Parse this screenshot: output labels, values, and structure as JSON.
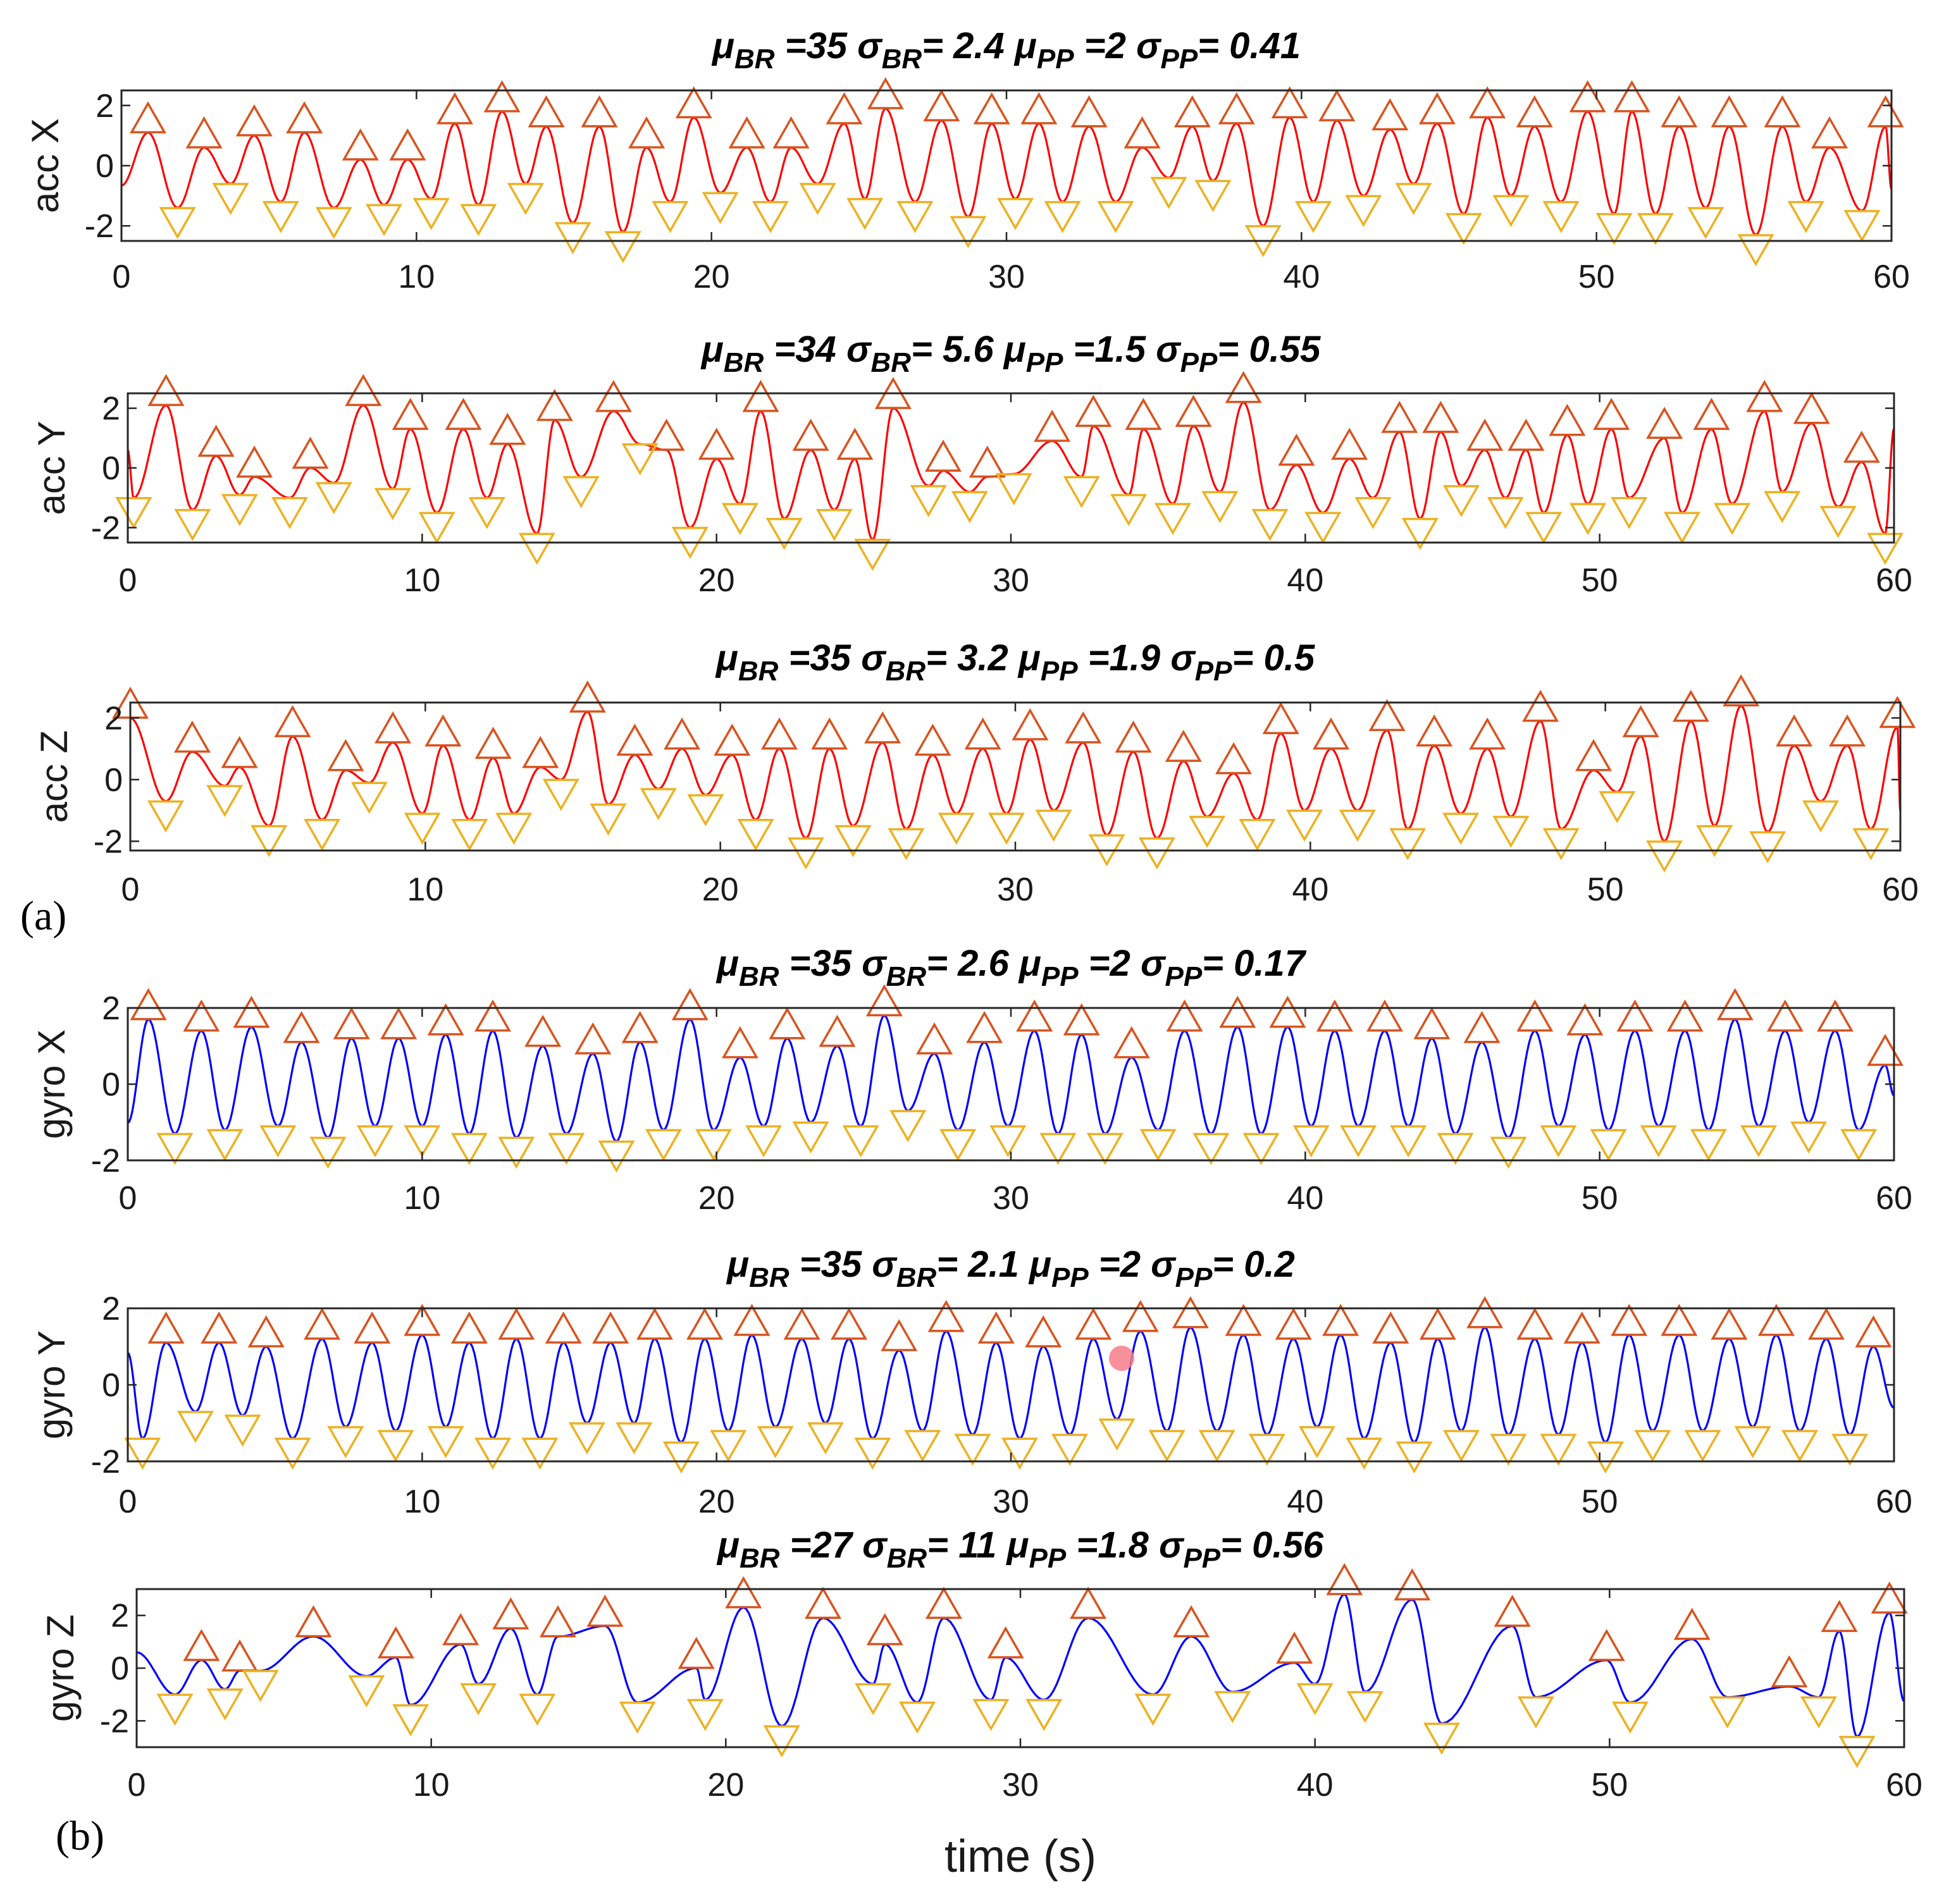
{
  "chart_data": [
    {
      "type": "line",
      "panel_label": "",
      "title": {
        "mu_br": "35",
        "sigma_br": "2.4",
        "mu_pp": "2",
        "sigma_pp": "0.41"
      },
      "ylabel": "acc X",
      "xlabel": "",
      "xlim": [
        0,
        60
      ],
      "ylim": [
        -2.5,
        2.5
      ],
      "xticks": [
        0,
        10,
        20,
        30,
        40,
        50,
        60
      ],
      "yticks": [
        -2,
        0,
        2
      ],
      "color": "#ff0000",
      "peaks_x": [
        0.9,
        2.8,
        4.5,
        6.2,
        8.1,
        9.7,
        11.3,
        12.9,
        14.4,
        16.2,
        17.8,
        19.4,
        21.2,
        22.7,
        24.5,
        25.9,
        27.8,
        29.5,
        31.1,
        32.8,
        34.6,
        36.3,
        37.8,
        39.6,
        41.2,
        43.0,
        44.6,
        46.3,
        47.9,
        49.7,
        51.2,
        52.8,
        54.5,
        56.3,
        57.9,
        59.8
      ],
      "peaks_y": [
        1.1,
        0.6,
        1.0,
        1.1,
        0.2,
        0.2,
        1.4,
        1.8,
        1.3,
        1.3,
        0.6,
        1.6,
        0.6,
        0.6,
        1.4,
        1.9,
        1.5,
        1.4,
        1.4,
        1.3,
        0.6,
        1.3,
        1.4,
        1.6,
        1.5,
        1.2,
        1.4,
        1.6,
        1.3,
        1.8,
        1.8,
        1.3,
        1.3,
        1.3,
        0.6,
        1.3
      ],
      "troughs_x": [
        1.9,
        3.7,
        5.4,
        7.2,
        8.9,
        10.5,
        12.1,
        13.7,
        15.3,
        17.0,
        18.6,
        20.3,
        22.0,
        23.6,
        25.2,
        26.9,
        28.7,
        30.3,
        31.9,
        33.7,
        35.5,
        37.0,
        38.7,
        40.4,
        42.1,
        43.8,
        45.5,
        47.1,
        48.8,
        50.6,
        52.0,
        53.7,
        55.4,
        57.1,
        59.0
      ],
      "troughs_y": [
        -1.4,
        -0.6,
        -1.2,
        -1.4,
        -1.3,
        -1.1,
        -1.3,
        -0.6,
        -1.9,
        -2.2,
        -1.2,
        -0.9,
        -1.2,
        -0.6,
        -1.1,
        -1.2,
        -1.7,
        -1.1,
        -1.2,
        -1.2,
        -0.4,
        -0.5,
        -2.0,
        -1.2,
        -1.0,
        -0.6,
        -1.6,
        -1.0,
        -1.2,
        -1.6,
        -1.6,
        -1.4,
        -2.3,
        -1.2,
        -1.5
      ]
    },
    {
      "type": "line",
      "panel_label": "",
      "title": {
        "mu_br": "34",
        "sigma_br": "5.6",
        "mu_pp": "1.5",
        "sigma_pp": "0.55"
      },
      "ylabel": "acc Y",
      "xlabel": "",
      "xlim": [
        0,
        60
      ],
      "ylim": [
        -2.5,
        2.5
      ],
      "xticks": [
        0,
        10,
        20,
        30,
        40,
        50,
        60
      ],
      "yticks": [
        -2,
        0,
        2
      ],
      "color": "#ff0000",
      "peaks_x": [
        1.3,
        3.0,
        4.3,
        6.2,
        8.0,
        9.6,
        11.4,
        12.9,
        14.5,
        16.5,
        18.3,
        20.0,
        21.5,
        23.2,
        24.7,
        26.0,
        27.7,
        29.2,
        31.4,
        32.8,
        34.5,
        36.2,
        37.9,
        39.7,
        41.5,
        43.2,
        44.6,
        46.1,
        47.5,
        48.9,
        50.4,
        52.2,
        53.8,
        55.6,
        57.2,
        58.9
      ],
      "peaks_y": [
        2.1,
        0.4,
        -0.3,
        0.0,
        2.1,
        1.3,
        1.3,
        0.8,
        1.6,
        1.9,
        0.6,
        0.3,
        1.9,
        0.6,
        0.3,
        2.0,
        -0.1,
        -0.3,
        0.9,
        1.4,
        1.3,
        1.4,
        2.2,
        0.1,
        0.3,
        1.2,
        1.2,
        0.6,
        0.6,
        1.1,
        1.3,
        1.0,
        1.3,
        1.9,
        1.5,
        0.2
      ],
      "troughs_x": [
        0.2,
        2.2,
        3.8,
        5.5,
        7.0,
        9.0,
        10.5,
        12.2,
        13.9,
        15.4,
        17.4,
        19.1,
        20.8,
        22.3,
        24.0,
        25.3,
        27.2,
        28.6,
        30.1,
        32.4,
        34.0,
        35.5,
        37.1,
        38.8,
        40.6,
        42.3,
        43.9,
        45.3,
        46.8,
        48.1,
        49.6,
        51.0,
        52.8,
        54.5,
        56.2,
        58.1,
        59.7
      ],
      "troughs_y": [
        -1.0,
        -1.4,
        -0.9,
        -1.0,
        -0.5,
        -0.7,
        -1.5,
        -1.0,
        -2.2,
        -0.3,
        0.8,
        -2.0,
        -1.2,
        -1.7,
        -1.4,
        -2.4,
        -0.6,
        -0.8,
        -0.2,
        -0.3,
        -0.9,
        -1.2,
        -0.8,
        -1.4,
        -1.5,
        -1.0,
        -1.7,
        -0.6,
        -1.0,
        -1.5,
        -1.2,
        -1.0,
        -1.5,
        -1.2,
        -0.8,
        -1.3,
        -2.2
      ]
    },
    {
      "type": "line",
      "panel_label": "(a)",
      "title": {
        "mu_br": "35",
        "sigma_br": "3.2",
        "mu_pp": "1.9",
        "sigma_pp": "0.5"
      },
      "ylabel": "acc Z",
      "xlabel": "",
      "xlim": [
        0,
        60
      ],
      "ylim": [
        -2.3,
        2.5
      ],
      "xticks": [
        0,
        10,
        20,
        30,
        40,
        50,
        60
      ],
      "yticks": [
        -2,
        0,
        2
      ],
      "color": "#ff0000",
      "peaks_x": [
        0.0,
        2.1,
        3.7,
        5.5,
        7.3,
        8.9,
        10.6,
        12.3,
        13.9,
        15.5,
        17.1,
        18.7,
        20.4,
        22.0,
        23.7,
        25.5,
        27.2,
        28.9,
        30.5,
        32.3,
        34.0,
        35.7,
        37.4,
        39.0,
        40.7,
        42.6,
        44.2,
        46.0,
        47.8,
        49.6,
        51.2,
        52.9,
        54.6,
        56.4,
        58.2,
        59.9
      ],
      "peaks_y": [
        2.0,
        0.9,
        0.4,
        1.4,
        0.3,
        1.2,
        1.1,
        0.7,
        0.4,
        2.2,
        0.8,
        1.0,
        0.8,
        1.0,
        1.0,
        1.2,
        0.8,
        1.0,
        1.3,
        1.2,
        0.9,
        0.6,
        0.2,
        1.5,
        1.0,
        1.6,
        1.1,
        1.0,
        1.9,
        0.3,
        1.4,
        1.9,
        2.4,
        1.1,
        1.1,
        1.7
      ],
      "troughs_x": [
        1.2,
        3.2,
        4.7,
        6.5,
        8.1,
        9.9,
        11.5,
        13.0,
        14.6,
        16.2,
        17.9,
        19.5,
        21.2,
        22.9,
        24.5,
        26.3,
        28.0,
        29.7,
        31.3,
        33.1,
        34.8,
        36.5,
        38.2,
        39.8,
        41.6,
        43.3,
        45.1,
        46.8,
        48.5,
        50.4,
        52.0,
        53.7,
        55.5,
        57.3,
        59.0
      ],
      "troughs_y": [
        -0.7,
        -0.2,
        -1.5,
        -1.3,
        -0.1,
        -1.1,
        -1.3,
        -1.1,
        0.0,
        -0.8,
        -0.3,
        -0.5,
        -1.3,
        -1.9,
        -1.5,
        -1.6,
        -1.1,
        -1.1,
        -1.0,
        -1.8,
        -1.9,
        -1.2,
        -1.3,
        -1.0,
        -1.0,
        -1.6,
        -1.1,
        -1.2,
        -1.6,
        -0.4,
        -2.0,
        -1.5,
        -1.7,
        -0.7,
        -1.6
      ]
    },
    {
      "type": "line",
      "panel_label": "",
      "title": {
        "mu_br": "35",
        "sigma_br": "2.6",
        "mu_pp": "2",
        "sigma_pp": "0.17"
      },
      "ylabel": "gyro X",
      "xlabel": "",
      "xlim": [
        0,
        60
      ],
      "ylim": [
        -2.0,
        2.0
      ],
      "xticks": [
        0,
        10,
        20,
        30,
        40,
        50,
        60
      ],
      "yticks": [
        -2,
        0,
        2
      ],
      "color": "#0000ff",
      "peaks_x": [
        0.7,
        2.5,
        4.2,
        5.9,
        7.6,
        9.2,
        10.8,
        12.4,
        14.1,
        15.8,
        17.4,
        19.1,
        20.8,
        22.4,
        24.1,
        25.7,
        27.4,
        29.1,
        30.8,
        32.4,
        34.1,
        35.9,
        37.7,
        39.4,
        41.0,
        42.7,
        44.3,
        46.0,
        47.8,
        49.5,
        51.2,
        52.9,
        54.6,
        56.3,
        58.0,
        59.7
      ],
      "peaks_y": [
        1.7,
        1.4,
        1.5,
        1.1,
        1.2,
        1.2,
        1.3,
        1.4,
        1.0,
        0.8,
        1.1,
        1.7,
        0.7,
        1.2,
        1.0,
        1.8,
        0.8,
        1.1,
        1.4,
        1.3,
        0.7,
        1.4,
        1.5,
        1.5,
        1.4,
        1.4,
        1.2,
        1.1,
        1.4,
        1.3,
        1.4,
        1.4,
        1.7,
        1.4,
        1.4,
        0.5
      ],
      "troughs_x": [
        1.6,
        3.3,
        5.1,
        6.8,
        8.4,
        10.0,
        11.6,
        13.2,
        14.9,
        16.6,
        18.2,
        19.9,
        21.6,
        23.2,
        24.9,
        26.5,
        28.2,
        29.9,
        31.6,
        33.2,
        35.0,
        36.8,
        38.5,
        40.2,
        41.8,
        43.5,
        45.1,
        46.9,
        48.6,
        50.3,
        52.0,
        53.7,
        55.4,
        57.1,
        58.8
      ],
      "troughs_y": [
        -1.3,
        -1.2,
        -1.1,
        -1.4,
        -1.1,
        -1.1,
        -1.3,
        -1.4,
        -1.3,
        -1.5,
        -1.2,
        -1.2,
        -1.1,
        -1.0,
        -1.1,
        -0.7,
        -1.2,
        -1.1,
        -1.3,
        -1.3,
        -1.2,
        -1.3,
        -1.3,
        -1.1,
        -1.1,
        -1.1,
        -1.3,
        -1.4,
        -1.1,
        -1.2,
        -1.1,
        -1.2,
        -1.1,
        -1.0,
        -1.2
      ]
    },
    {
      "type": "line",
      "panel_label": "",
      "title": {
        "mu_br": "35",
        "sigma_br": "2.1",
        "mu_pp": "2",
        "sigma_pp": "0.2"
      },
      "ylabel": "gyro Y",
      "xlabel": "",
      "xlim": [
        0,
        60
      ],
      "ylim": [
        -2.0,
        2.0
      ],
      "xticks": [
        0,
        10,
        20,
        30,
        40,
        50,
        60
      ],
      "yticks": [
        -2,
        0,
        2
      ],
      "color": "#0000ff",
      "peaks_x": [
        1.3,
        3.1,
        4.7,
        6.6,
        8.3,
        10.0,
        11.6,
        13.2,
        14.8,
        16.4,
        17.9,
        19.6,
        21.2,
        22.9,
        24.5,
        26.2,
        27.8,
        29.5,
        31.1,
        32.8,
        34.4,
        36.1,
        37.9,
        39.6,
        41.2,
        42.9,
        44.5,
        46.1,
        47.8,
        49.4,
        51.0,
        52.7,
        54.4,
        56.0,
        57.7,
        59.3
      ],
      "peaks_y": [
        1.1,
        1.1,
        1.0,
        1.2,
        1.1,
        1.3,
        1.1,
        1.2,
        1.1,
        1.1,
        1.2,
        1.2,
        1.3,
        1.2,
        1.2,
        0.9,
        1.4,
        1.1,
        1.0,
        1.2,
        1.4,
        1.5,
        1.3,
        1.2,
        1.3,
        1.1,
        1.2,
        1.5,
        1.2,
        1.1,
        1.3,
        1.3,
        1.2,
        1.3,
        1.2,
        1.0
      ],
      "troughs_x": [
        0.5,
        2.3,
        3.9,
        5.6,
        7.4,
        9.1,
        10.8,
        12.4,
        14.0,
        15.6,
        17.2,
        18.8,
        20.4,
        22.0,
        23.7,
        25.3,
        27.0,
        28.7,
        30.3,
        32.0,
        33.6,
        35.3,
        37.0,
        38.7,
        40.4,
        42.0,
        43.7,
        45.3,
        46.9,
        48.6,
        50.2,
        51.8,
        53.5,
        55.2,
        56.8,
        58.5
      ],
      "troughs_y": [
        -1.4,
        -0.7,
        -0.8,
        -1.4,
        -1.1,
        -1.2,
        -1.1,
        -1.4,
        -1.4,
        -1.0,
        -1.0,
        -1.5,
        -1.2,
        -1.1,
        -1.0,
        -1.4,
        -1.2,
        -1.3,
        -1.4,
        -1.3,
        -0.9,
        -1.2,
        -1.2,
        -1.3,
        -1.1,
        -1.4,
        -1.5,
        -1.2,
        -1.3,
        -1.3,
        -1.5,
        -1.2,
        -1.2,
        -1.1,
        -1.2,
        -1.3
      ]
    },
    {
      "type": "line",
      "panel_label": "(b)",
      "title": {
        "mu_br": "27",
        "sigma_br": "11",
        "mu_pp": "1.8",
        "sigma_pp": "0.56"
      },
      "ylabel": "gyro Z",
      "xlabel": "time (s)",
      "xlim": [
        0,
        60
      ],
      "ylim": [
        -3.0,
        3.0
      ],
      "xticks": [
        0,
        10,
        20,
        30,
        40,
        50,
        60
      ],
      "yticks": [
        -2,
        0,
        2
      ],
      "color": "#0000ff",
      "peaks_x": [
        2.2,
        3.5,
        6.0,
        8.8,
        11.0,
        12.7,
        14.3,
        15.9,
        19.0,
        20.6,
        23.3,
        25.4,
        27.4,
        29.5,
        32.3,
        35.8,
        39.3,
        41.0,
        43.3,
        46.7,
        49.9,
        52.8,
        56.1,
        57.8,
        59.5
      ],
      "peaks_y": [
        0.3,
        -0.1,
        1.2,
        0.4,
        0.9,
        1.5,
        1.2,
        1.6,
        0.0,
        2.3,
        1.9,
        0.9,
        1.9,
        0.4,
        1.9,
        1.2,
        0.2,
        2.8,
        2.6,
        1.6,
        0.3,
        1.1,
        -0.7,
        1.4,
        2.1
      ],
      "troughs_x": [
        1.3,
        3.0,
        4.2,
        7.8,
        9.3,
        11.6,
        13.6,
        17.0,
        19.3,
        21.9,
        25.0,
        26.5,
        29.0,
        30.8,
        34.5,
        37.2,
        40.0,
        41.7,
        44.3,
        47.5,
        50.7,
        54.0,
        57.1,
        58.4
      ],
      "troughs_y": [
        -1.0,
        -0.8,
        -0.1,
        -0.3,
        -1.4,
        -0.6,
        -1.0,
        -1.3,
        -1.2,
        -2.2,
        -0.6,
        -1.3,
        -1.2,
        -1.2,
        -1.0,
        -0.9,
        -0.6,
        -0.9,
        -2.1,
        -1.1,
        -1.3,
        -1.1,
        -1.1,
        -2.6
      ]
    }
  ]
}
